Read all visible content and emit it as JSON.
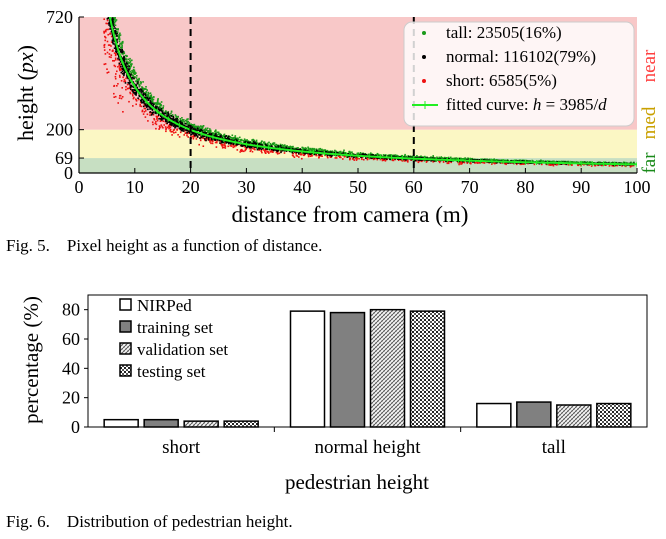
{
  "figure1": {
    "caption": "Fig. 5.    Pixel height as a function of distance.",
    "chart_data": {
      "type": "scatter",
      "xlabel": "distance from camera (m)",
      "ylabel_prefix": "height (",
      "ylabel_unit": "px",
      "ylabel_suffix": ")",
      "xlim": [
        0,
        100
      ],
      "ylim": [
        0,
        720
      ],
      "x_ticks": [
        0,
        10,
        20,
        30,
        40,
        50,
        60,
        70,
        80,
        90,
        100
      ],
      "y_ticks": [
        0,
        69,
        200,
        720
      ],
      "vlines": [
        20,
        60
      ],
      "bands": [
        {
          "name": "far",
          "from": 0,
          "to": 69,
          "color": "#c7dfc2",
          "text_color": "#1a8a1a"
        },
        {
          "name": "med",
          "from": 69,
          "to": 200,
          "color": "#fbf7c4",
          "text_color": "#c9a000"
        },
        {
          "name": "near",
          "from": 200,
          "to": 720,
          "color": "#f8c8c8",
          "text_color": "#ff4040"
        }
      ],
      "fit": {
        "coefficient": 3985,
        "color": "#22ee22"
      },
      "legend": {
        "placement": "top-right",
        "entries": [
          {
            "text": "tall: 23505(16%)",
            "marker": "dot",
            "color": "#1a9a1a"
          },
          {
            "text": "normal: 116102(79%)",
            "marker": "dot",
            "color": "#000000"
          },
          {
            "text": "short: 6585(5%)",
            "marker": "dot",
            "color": "#ee1111"
          },
          {
            "text_prefix": "fitted curve: ",
            "text_var": "h",
            "text_mid": " = 3985/",
            "text_var2": "d",
            "marker": "line",
            "color": "#22ee22"
          }
        ]
      },
      "series": [
        {
          "name": "tall",
          "count": 23505,
          "percent": 16,
          "color": "#1a9a1a"
        },
        {
          "name": "normal",
          "count": 116102,
          "percent": 79,
          "color": "#000000"
        },
        {
          "name": "short",
          "count": 6585,
          "percent": 5,
          "color": "#ee1111"
        }
      ]
    }
  },
  "figure2": {
    "caption": "Fig. 6.    Distribution of pedestrian height.",
    "chart_data": {
      "type": "bar",
      "xlabel": "pedestrian height",
      "ylabel": "percentage (%)",
      "ylim": [
        0,
        90
      ],
      "y_ticks": [
        0,
        20,
        40,
        60,
        80
      ],
      "categories": [
        "short",
        "normal height",
        "tall"
      ],
      "series": [
        {
          "name": "NIRPed",
          "values": [
            5,
            79,
            16
          ],
          "fill": "white"
        },
        {
          "name": "training set",
          "values": [
            5,
            78,
            17
          ],
          "fill": "gray"
        },
        {
          "name": "validation set",
          "values": [
            4,
            80,
            15
          ],
          "fill": "hatch"
        },
        {
          "name": "testing set",
          "values": [
            4,
            79,
            16
          ],
          "fill": "dots"
        }
      ],
      "legend": {
        "placement": "top-left"
      }
    }
  }
}
